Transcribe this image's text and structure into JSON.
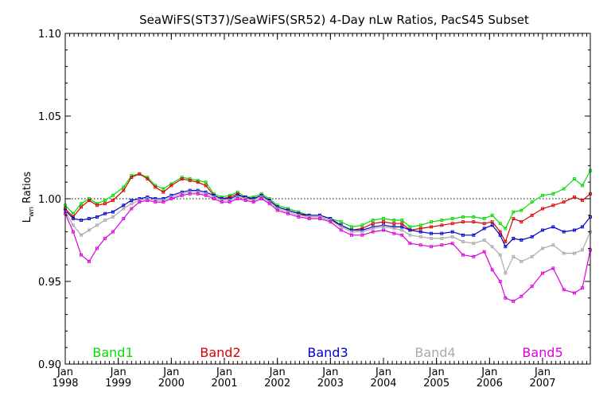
{
  "chart_data": {
    "type": "line",
    "title": "SeaWiFS(ST37)/SeaWiFS(SR52) 4-Day nLw Ratios, PacS45 Subset",
    "ylabel_main": "L",
    "ylabel_sub": "wn",
    "ylabel_rest": " Ratios",
    "xlabel": "",
    "xlim": [
      1998.0,
      2007.9
    ],
    "ylim": [
      0.9,
      1.1
    ],
    "yticks": [
      "0.90",
      "0.95",
      "1.00",
      "1.05",
      "1.10"
    ],
    "xticks": [
      {
        "month": "Jan",
        "year": "1998",
        "x": 1998.0
      },
      {
        "month": "Jan",
        "year": "1999",
        "x": 1999.0
      },
      {
        "month": "Jan",
        "year": "2000",
        "x": 2000.0
      },
      {
        "month": "Jan",
        "year": "2001",
        "x": 2001.0
      },
      {
        "month": "Jan",
        "year": "2002",
        "x": 2002.0
      },
      {
        "month": "Jan",
        "year": "2003",
        "x": 2003.0
      },
      {
        "month": "Jan",
        "year": "2004",
        "x": 2004.0
      },
      {
        "month": "Jan",
        "year": "2005",
        "x": 2005.0
      },
      {
        "month": "Jan",
        "year": "2006",
        "x": 2006.0
      },
      {
        "month": "Jan",
        "year": "2007",
        "x": 2007.0
      }
    ],
    "reference_line": 1.0,
    "grid": false,
    "legend_placement": "bottom",
    "x": [
      1998.0,
      1998.15,
      1998.3,
      1998.45,
      1998.6,
      1998.75,
      1998.9,
      1999.1,
      1999.25,
      1999.4,
      1999.55,
      1999.7,
      1999.85,
      2000.0,
      2000.2,
      2000.35,
      2000.5,
      2000.65,
      2000.8,
      2000.95,
      2001.1,
      2001.25,
      2001.4,
      2001.55,
      2001.7,
      2001.85,
      2002.0,
      2002.2,
      2002.4,
      2002.6,
      2002.8,
      2003.0,
      2003.2,
      2003.4,
      2003.6,
      2003.8,
      2004.0,
      2004.2,
      2004.35,
      2004.5,
      2004.7,
      2004.9,
      2005.1,
      2005.3,
      2005.5,
      2005.7,
      2005.9,
      2006.05,
      2006.2,
      2006.3,
      2006.45,
      2006.6,
      2006.8,
      2007.0,
      2007.2,
      2007.4,
      2007.6,
      2007.75,
      2007.9
    ],
    "series": [
      {
        "name": "Band1",
        "color": "#00dd00",
        "values": [
          0.996,
          0.991,
          0.997,
          1.0,
          0.997,
          0.999,
          1.002,
          1.007,
          1.014,
          1.015,
          1.013,
          1.008,
          1.006,
          1.009,
          1.013,
          1.012,
          1.011,
          1.01,
          1.003,
          1.001,
          1.002,
          1.004,
          1.001,
          1.001,
          1.003,
          1.0,
          0.996,
          0.994,
          0.992,
          0.99,
          0.99,
          0.988,
          0.986,
          0.983,
          0.984,
          0.987,
          0.988,
          0.987,
          0.987,
          0.983,
          0.984,
          0.986,
          0.987,
          0.988,
          0.989,
          0.989,
          0.988,
          0.99,
          0.985,
          0.982,
          0.992,
          0.993,
          0.998,
          1.002,
          1.003,
          1.006,
          1.012,
          1.008,
          1.017
        ]
      },
      {
        "name": "Band2",
        "color": "#dd0000",
        "values": [
          0.994,
          0.989,
          0.995,
          0.999,
          0.996,
          0.997,
          0.999,
          1.005,
          1.013,
          1.015,
          1.012,
          1.007,
          1.004,
          1.008,
          1.012,
          1.011,
          1.01,
          1.008,
          1.002,
          1.0,
          1.001,
          1.003,
          1.0,
          1.0,
          1.002,
          0.999,
          0.995,
          0.993,
          0.991,
          0.989,
          0.989,
          0.987,
          0.984,
          0.981,
          0.982,
          0.985,
          0.986,
          0.985,
          0.985,
          0.981,
          0.982,
          0.983,
          0.984,
          0.985,
          0.986,
          0.986,
          0.985,
          0.986,
          0.98,
          0.974,
          0.988,
          0.986,
          0.99,
          0.994,
          0.996,
          0.998,
          1.001,
          0.999,
          1.003
        ]
      },
      {
        "name": "Band3",
        "color": "#0000cc",
        "values": [
          0.993,
          0.988,
          0.987,
          0.988,
          0.989,
          0.991,
          0.992,
          0.996,
          0.999,
          1.0,
          1.001,
          1.0,
          1.0,
          1.002,
          1.004,
          1.005,
          1.005,
          1.004,
          1.002,
          1.0,
          1.0,
          1.002,
          1.001,
          1.0,
          1.002,
          0.999,
          0.995,
          0.993,
          0.991,
          0.99,
          0.99,
          0.988,
          0.984,
          0.981,
          0.981,
          0.983,
          0.984,
          0.983,
          0.983,
          0.981,
          0.98,
          0.979,
          0.979,
          0.98,
          0.978,
          0.978,
          0.982,
          0.984,
          0.978,
          0.971,
          0.976,
          0.975,
          0.977,
          0.981,
          0.983,
          0.98,
          0.981,
          0.983,
          0.989
        ]
      },
      {
        "name": "Band4",
        "color": "#aaaaaa",
        "values": [
          0.992,
          0.984,
          0.978,
          0.981,
          0.984,
          0.987,
          0.989,
          0.994,
          0.997,
          0.999,
          1.0,
          0.999,
          0.999,
          1.001,
          1.003,
          1.004,
          1.004,
          1.003,
          1.001,
          0.999,
          0.999,
          1.001,
          1.0,
          0.999,
          1.001,
          0.998,
          0.994,
          0.992,
          0.99,
          0.989,
          0.989,
          0.987,
          0.983,
          0.98,
          0.98,
          0.982,
          0.983,
          0.982,
          0.981,
          0.978,
          0.977,
          0.976,
          0.976,
          0.977,
          0.974,
          0.973,
          0.975,
          0.971,
          0.966,
          0.955,
          0.965,
          0.962,
          0.965,
          0.97,
          0.972,
          0.967,
          0.967,
          0.969,
          0.98
        ]
      },
      {
        "name": "Band5",
        "color": "#dd00dd",
        "values": [
          0.991,
          0.98,
          0.966,
          0.962,
          0.97,
          0.976,
          0.98,
          0.988,
          0.994,
          0.998,
          0.999,
          0.998,
          0.998,
          1.0,
          1.002,
          1.003,
          1.003,
          1.002,
          1.0,
          0.998,
          0.998,
          1.0,
          0.999,
          0.998,
          1.0,
          0.997,
          0.993,
          0.991,
          0.989,
          0.988,
          0.988,
          0.986,
          0.981,
          0.978,
          0.978,
          0.98,
          0.981,
          0.979,
          0.978,
          0.973,
          0.972,
          0.971,
          0.972,
          0.973,
          0.966,
          0.965,
          0.968,
          0.957,
          0.95,
          0.94,
          0.938,
          0.941,
          0.947,
          0.955,
          0.958,
          0.945,
          0.943,
          0.946,
          0.969
        ]
      }
    ]
  }
}
